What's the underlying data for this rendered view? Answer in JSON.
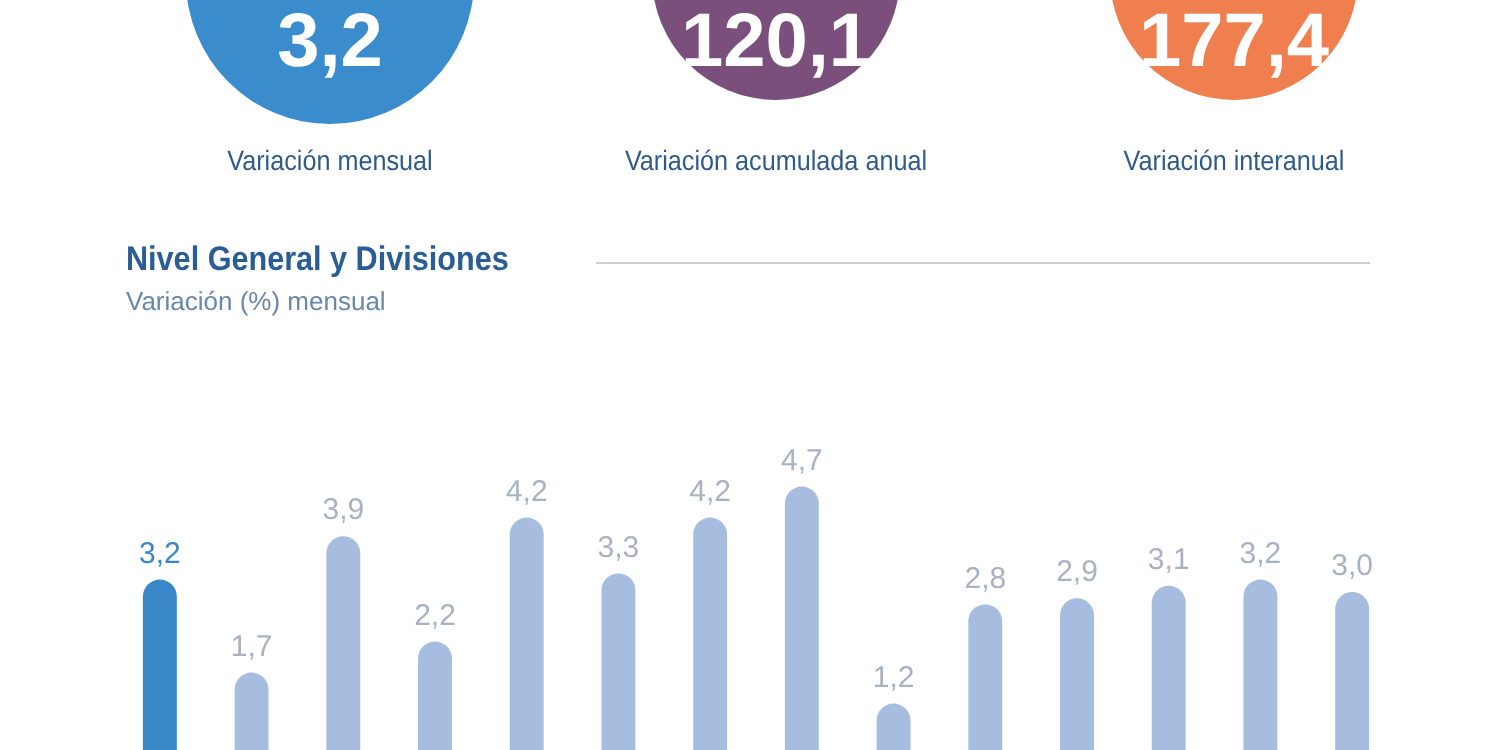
{
  "chart_data": [
    {
      "type": "other",
      "categories": [
        "Variación mensual",
        "Variación acumulada anual",
        "Variación interanual"
      ],
      "value_labels": [
        "3,2",
        "120,1",
        "177,4"
      ],
      "colors": [
        "#3a8ccc",
        "#7a4f7c",
        "#ef7f4f"
      ]
    },
    {
      "type": "bar",
      "title": "Nivel General y Divisiones",
      "subtitle": "Variación (%) mensual",
      "categories": [
        null,
        null,
        null,
        null,
        null,
        null,
        null,
        null,
        null,
        null,
        null,
        null,
        null,
        null
      ],
      "values": [
        3.2,
        1.7,
        3.9,
        2.2,
        4.2,
        3.3,
        4.2,
        4.7,
        1.2,
        2.8,
        2.9,
        3.1,
        3.2,
        3.0
      ],
      "value_labels": [
        "3,2",
        "1,7",
        "3,9",
        "2,2",
        "4,2",
        "3,3",
        "4,2",
        "4,7",
        "1,2",
        "2,8",
        "2,9",
        "3,1",
        "3,2",
        "3,0"
      ],
      "colors": [
        "#3a87c8",
        "#a6bde0",
        "#a6bde0",
        "#a6bde0",
        "#a6bde0",
        "#a6bde0",
        "#a6bde0",
        "#a6bde0",
        "#a6bde0",
        "#a6bde0",
        "#a6bde0",
        "#a6bde0",
        "#a6bde0",
        "#a6bde0"
      ]
    }
  ]
}
